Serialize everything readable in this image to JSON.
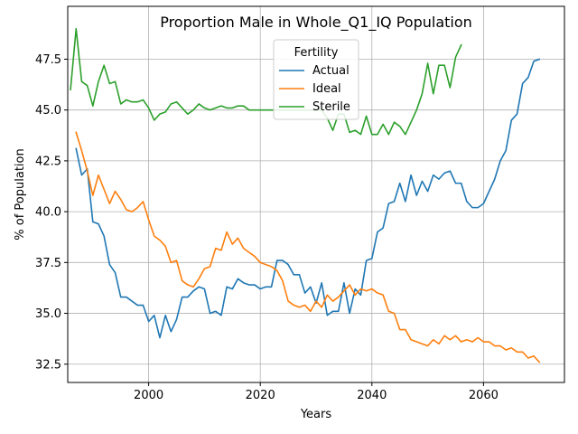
{
  "chart_data": {
    "type": "line",
    "title": "Proportion Male in Whole_Q1_IQ Population",
    "xlabel": "Years",
    "ylabel": "% of Population",
    "xlim": [
      1985.5,
      2074.5
    ],
    "ylim": [
      31.6,
      50.1
    ],
    "xticks": [
      2000,
      2020,
      2040,
      2060
    ],
    "yticks": [
      32.5,
      35.0,
      37.5,
      40.0,
      42.5,
      45.0,
      47.5
    ],
    "ytick_labels": [
      "32.5",
      "35.0",
      "37.5",
      "40.0",
      "42.5",
      "45.0",
      "47.5"
    ],
    "grid": true,
    "legend": {
      "title": "Fertility",
      "placement": "top-center"
    },
    "series": [
      {
        "name": "Actual",
        "color": "#1f77b4",
        "x": [
          1987,
          1988,
          1989,
          1990,
          1991,
          1992,
          1993,
          1994,
          1995,
          1996,
          1997,
          1998,
          1999,
          2000,
          2001,
          2002,
          2003,
          2004,
          2005,
          2006,
          2007,
          2008,
          2009,
          2010,
          2011,
          2012,
          2013,
          2014,
          2015,
          2016,
          2017,
          2018,
          2019,
          2020,
          2021,
          2022,
          2023,
          2024,
          2025,
          2026,
          2027,
          2028,
          2029,
          2030,
          2031,
          2032,
          2033,
          2034,
          2035,
          2036,
          2037,
          2038,
          2039,
          2040,
          2041,
          2042,
          2043,
          2044,
          2045,
          2046,
          2047,
          2048,
          2049,
          2050,
          2051,
          2052,
          2053,
          2054,
          2055,
          2056,
          2057,
          2058,
          2059,
          2060,
          2061,
          2062,
          2063,
          2064,
          2065,
          2066,
          2067,
          2068,
          2069,
          2070
        ],
        "values": [
          43.1,
          41.8,
          42.1,
          39.5,
          39.4,
          38.8,
          37.4,
          37.0,
          35.8,
          35.8,
          35.6,
          35.4,
          35.4,
          34.6,
          34.9,
          33.8,
          34.9,
          34.1,
          34.7,
          35.8,
          35.8,
          36.1,
          36.3,
          36.2,
          35.0,
          35.1,
          34.9,
          36.3,
          36.2,
          36.7,
          36.5,
          36.4,
          36.4,
          36.2,
          36.3,
          36.3,
          37.6,
          37.6,
          37.4,
          36.9,
          36.9,
          36.0,
          36.3,
          35.5,
          36.5,
          34.9,
          35.1,
          35.1,
          36.5,
          35.0,
          36.2,
          35.9,
          37.6,
          37.7,
          39.0,
          39.2,
          40.4,
          40.5,
          41.4,
          40.5,
          41.8,
          40.8,
          41.5,
          41.0,
          41.8,
          41.6,
          41.9,
          42.0,
          41.4,
          41.4,
          40.5,
          40.2,
          40.2,
          40.4,
          41.0,
          41.6,
          42.5,
          43.0,
          44.5,
          44.8,
          46.3,
          46.6,
          47.4,
          47.5
        ]
      },
      {
        "name": "Ideal",
        "color": "#ff7f0e",
        "x": [
          1987,
          1988,
          1989,
          1990,
          1991,
          1992,
          1993,
          1994,
          1995,
          1996,
          1997,
          1998,
          1999,
          2000,
          2001,
          2002,
          2003,
          2004,
          2005,
          2006,
          2007,
          2008,
          2009,
          2010,
          2011,
          2012,
          2013,
          2014,
          2015,
          2016,
          2017,
          2018,
          2019,
          2020,
          2021,
          2022,
          2023,
          2024,
          2025,
          2026,
          2027,
          2028,
          2029,
          2030,
          2031,
          2032,
          2033,
          2034,
          2035,
          2036,
          2037,
          2038,
          2039,
          2040,
          2041,
          2042,
          2043,
          2044,
          2045,
          2046,
          2047,
          2048,
          2049,
          2050,
          2051,
          2052,
          2053,
          2054,
          2055,
          2056,
          2057,
          2058,
          2059,
          2060,
          2061,
          2062,
          2063,
          2064,
          2065,
          2066,
          2067,
          2068,
          2069,
          2070
        ],
        "values": [
          43.9,
          43.0,
          42.0,
          40.8,
          41.8,
          41.1,
          40.4,
          41.0,
          40.6,
          40.1,
          40.0,
          40.2,
          40.5,
          39.6,
          38.8,
          38.6,
          38.3,
          37.5,
          37.6,
          36.6,
          36.4,
          36.3,
          36.7,
          37.2,
          37.3,
          38.2,
          38.1,
          39.0,
          38.4,
          38.7,
          38.2,
          38.0,
          37.8,
          37.5,
          37.4,
          37.3,
          37.1,
          36.6,
          35.6,
          35.4,
          35.3,
          35.4,
          35.1,
          35.6,
          35.3,
          35.9,
          35.6,
          35.8,
          36.1,
          36.4,
          35.9,
          36.2,
          36.1,
          36.2,
          36.0,
          35.9,
          35.1,
          35.0,
          34.2,
          34.2,
          33.7,
          33.6,
          33.5,
          33.4,
          33.7,
          33.5,
          33.9,
          33.7,
          33.9,
          33.6,
          33.7,
          33.6,
          33.8,
          33.6,
          33.6,
          33.4,
          33.4,
          33.2,
          33.3,
          33.1,
          33.1,
          32.8,
          32.9,
          32.6
        ]
      },
      {
        "name": "Sterile",
        "color": "#2ca02c",
        "x": [
          1986,
          1987,
          1988,
          1989,
          1990,
          1991,
          1992,
          1993,
          1994,
          1995,
          1996,
          1997,
          1998,
          1999,
          2000,
          2001,
          2002,
          2003,
          2004,
          2005,
          2006,
          2007,
          2008,
          2009,
          2010,
          2011,
          2012,
          2013,
          2014,
          2015,
          2016,
          2017,
          2018,
          2019,
          2020,
          2021,
          2022,
          2023,
          2024,
          2025,
          2026,
          2027,
          2028,
          2029,
          2030,
          2031,
          2032,
          2033,
          2034,
          2035,
          2036,
          2037,
          2038,
          2039,
          2040,
          2041,
          2042,
          2043,
          2044,
          2045,
          2046,
          2047,
          2048,
          2049,
          2050,
          2051,
          2052,
          2053,
          2054,
          2055,
          2056
        ],
        "values": [
          46.0,
          49.0,
          46.4,
          46.2,
          45.2,
          46.4,
          47.2,
          46.3,
          46.4,
          45.3,
          45.5,
          45.4,
          45.4,
          45.5,
          45.1,
          44.5,
          44.8,
          44.9,
          45.3,
          45.4,
          45.1,
          44.8,
          45.0,
          45.3,
          45.1,
          45.0,
          45.1,
          45.2,
          45.1,
          45.1,
          45.2,
          45.2,
          45.0,
          45.0,
          45.0,
          45.0,
          45.0,
          45.0,
          45.0,
          45.0,
          45.0,
          45.0,
          45.0,
          45.0,
          45.0,
          45.0,
          44.6,
          44.0,
          44.8,
          44.8,
          43.9,
          44.0,
          43.8,
          44.7,
          43.8,
          43.8,
          44.3,
          43.8,
          44.4,
          44.2,
          43.8,
          44.4,
          45.0,
          45.8,
          47.3,
          45.8,
          47.2,
          47.2,
          46.1,
          47.6,
          48.2
        ]
      }
    ]
  }
}
